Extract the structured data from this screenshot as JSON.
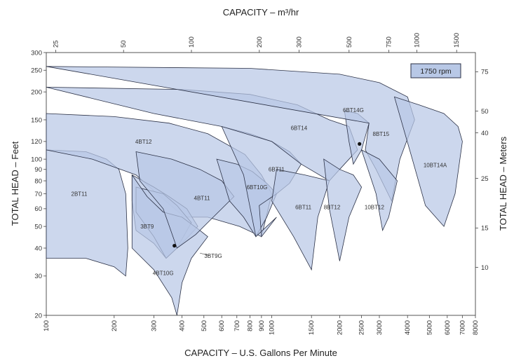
{
  "chart_data": {
    "type": "area",
    "title": "",
    "x_axis_bottom": {
      "label": "CAPACITY – U.S. Gallons Per Minute",
      "scale": "log",
      "range": [
        100,
        8000
      ],
      "ticks": [
        100,
        200,
        300,
        400,
        500,
        600,
        700,
        800,
        900,
        1000,
        1500,
        2000,
        2500,
        3000,
        4000,
        5000,
        6000,
        7000,
        8000
      ],
      "tick_labels": [
        "100",
        "200",
        "300",
        "400",
        "500",
        "600",
        "700",
        "800",
        "900",
        "1000",
        "1500",
        "2000",
        "2500",
        "3000",
        "4000",
        "5000",
        "6000",
        "7000",
        "8000"
      ]
    },
    "x_axis_top": {
      "label": "CAPACITY – m³/hr",
      "scale": "log",
      "ticks": [
        25,
        50,
        100,
        200,
        300,
        500,
        750,
        1000,
        1500
      ],
      "tick_labels": [
        "25",
        "50",
        "100",
        "200",
        "300",
        "500",
        "750",
        "1000",
        "1500"
      ]
    },
    "y_axis_left": {
      "label": "TOTAL HEAD – Feet",
      "scale": "log",
      "range": [
        20,
        300
      ],
      "ticks": [
        20,
        30,
        40,
        50,
        60,
        70,
        80,
        90,
        100,
        120,
        150,
        200,
        250,
        300
      ],
      "tick_labels": [
        "20",
        "30",
        "40",
        "50",
        "60",
        "70",
        "80",
        "90",
        "100",
        "120",
        "150",
        "200",
        "250",
        "300"
      ]
    },
    "y_axis_right": {
      "label": "TOTAL HEAD – Meters",
      "scale": "log",
      "ticks": [
        10,
        15,
        25,
        40,
        50,
        75
      ],
      "tick_labels": [
        "10",
        "15",
        "25",
        "40",
        "50",
        "75"
      ]
    },
    "speed_label": "1750 rpm",
    "regions": [
      {
        "name": "2BT11",
        "points": [
          [
            100,
            110
          ],
          [
            150,
            108
          ],
          [
            185,
            100
          ],
          [
            210,
            90
          ],
          [
            225,
            70
          ],
          [
            230,
            40
          ],
          [
            225,
            30
          ],
          [
            200,
            33
          ],
          [
            150,
            36
          ],
          [
            100,
            36
          ]
        ]
      },
      {
        "name": "4BT12",
        "points": [
          [
            100,
            160
          ],
          [
            200,
            155
          ],
          [
            350,
            145
          ],
          [
            520,
            130
          ],
          [
            760,
            105
          ],
          [
            900,
            85
          ],
          [
            1000,
            70
          ],
          [
            900,
            45
          ],
          [
            720,
            50
          ],
          [
            520,
            55
          ],
          [
            410,
            55
          ],
          [
            310,
            70
          ],
          [
            250,
            85
          ],
          [
            160,
            100
          ],
          [
            100,
            110
          ]
        ]
      },
      {
        "name": "3BT9",
        "points": [
          [
            240,
            85
          ],
          [
            300,
            75
          ],
          [
            350,
            68
          ],
          [
            420,
            60
          ],
          [
            470,
            50
          ],
          [
            400,
            42
          ],
          [
            340,
            36
          ],
          [
            300,
            42
          ],
          [
            250,
            48
          ],
          [
            240,
            65
          ]
        ]
      },
      {
        "name": "3BT9G",
        "points": [
          [
            250,
            75
          ],
          [
            330,
            70
          ],
          [
            380,
            62
          ],
          [
            440,
            52
          ],
          [
            380,
            40
          ],
          [
            340,
            36
          ],
          [
            300,
            45
          ],
          [
            250,
            58
          ]
        ]
      },
      {
        "name": "4BT10G",
        "points": [
          [
            240,
            85
          ],
          [
            280,
            68
          ],
          [
            330,
            58
          ],
          [
            400,
            55
          ],
          [
            480,
            48
          ],
          [
            520,
            45
          ],
          [
            440,
            36
          ],
          [
            400,
            28
          ],
          [
            380,
            20
          ],
          [
            360,
            24
          ],
          [
            300,
            32
          ],
          [
            240,
            40
          ]
        ]
      },
      {
        "name": "4BT11",
        "points": [
          [
            250,
            108
          ],
          [
            360,
            100
          ],
          [
            480,
            90
          ],
          [
            600,
            80
          ],
          [
            680,
            68
          ],
          [
            560,
            56
          ],
          [
            460,
            46
          ],
          [
            380,
            40
          ],
          [
            330,
            60
          ],
          [
            260,
            80
          ]
        ]
      },
      {
        "name": "6BT10G",
        "points": [
          [
            570,
            100
          ],
          [
            700,
            95
          ],
          [
            820,
            88
          ],
          [
            950,
            78
          ],
          [
            1050,
            70
          ],
          [
            950,
            55
          ],
          [
            850,
            45
          ],
          [
            750,
            55
          ],
          [
            650,
            65
          ]
        ]
      },
      {
        "name": "6BT11",
        "points": [
          [
            600,
            140
          ],
          [
            800,
            130
          ],
          [
            1000,
            120
          ],
          [
            1200,
            108
          ],
          [
            1350,
            95
          ],
          [
            1200,
            78
          ],
          [
            1050,
            70
          ],
          [
            880,
            62
          ],
          [
            900,
            45
          ],
          [
            1050,
            55
          ],
          [
            850,
            45
          ],
          [
            750,
            85
          ]
        ]
      },
      {
        "name": "6BT11b",
        "points": [
          [
            1050,
            90
          ],
          [
            1400,
            85
          ],
          [
            1800,
            80
          ],
          [
            1600,
            55
          ],
          [
            1500,
            32
          ],
          [
            1250,
            45
          ],
          [
            1000,
            65
          ]
        ]
      },
      {
        "name": "6BT14",
        "points": [
          [
            100,
            210
          ],
          [
            400,
            205
          ],
          [
            800,
            195
          ],
          [
            1300,
            175
          ],
          [
            1800,
            150
          ],
          [
            2200,
            140
          ],
          [
            2400,
            110
          ],
          [
            2000,
            90
          ],
          [
            1800,
            80
          ],
          [
            1350,
            95
          ],
          [
            1000,
            120
          ],
          [
            600,
            140
          ],
          [
            300,
            160
          ],
          [
            100,
            210
          ]
        ]
      },
      {
        "name": "8BT12",
        "points": [
          [
            1700,
            100
          ],
          [
            2000,
            90
          ],
          [
            2300,
            85
          ],
          [
            2500,
            75
          ],
          [
            2200,
            55
          ],
          [
            2000,
            35
          ],
          [
            1800,
            60
          ]
        ]
      },
      {
        "name": "6BT14G",
        "points": [
          [
            2100,
            165
          ],
          [
            2400,
            160
          ],
          [
            2700,
            145
          ],
          [
            2500,
            110
          ],
          [
            2300,
            95
          ],
          [
            2200,
            120
          ]
        ]
      },
      {
        "name": "8BT15",
        "points": [
          [
            100,
            260
          ],
          [
            800,
            255
          ],
          [
            2000,
            240
          ],
          [
            3000,
            220
          ],
          [
            4000,
            190
          ],
          [
            4300,
            150
          ],
          [
            3700,
            100
          ],
          [
            3400,
            65
          ],
          [
            2900,
            90
          ],
          [
            2600,
            110
          ],
          [
            2700,
            145
          ]
        ]
      },
      {
        "name": "10BT12",
        "points": [
          [
            2500,
            110
          ],
          [
            3000,
            100
          ],
          [
            3600,
            80
          ],
          [
            3300,
            55
          ],
          [
            3100,
            48
          ],
          [
            2900,
            70
          ]
        ]
      },
      {
        "name": "10BT14A",
        "points": [
          [
            3500,
            190
          ],
          [
            4500,
            175
          ],
          [
            5800,
            160
          ],
          [
            6700,
            140
          ],
          [
            7000,
            120
          ],
          [
            6500,
            70
          ],
          [
            5800,
            50
          ],
          [
            4800,
            62
          ],
          [
            4200,
            100
          ]
        ]
      }
    ],
    "region_labels": [
      {
        "text": "2BT11",
        "x": 140,
        "y": 70
      },
      {
        "text": "4BT12",
        "x": 270,
        "y": 120
      },
      {
        "text": "3BT9",
        "x": 280,
        "y": 50
      },
      {
        "text": "3BT9G",
        "x": 550,
        "y": 37
      },
      {
        "text": "4BT10G",
        "x": 330,
        "y": 31
      },
      {
        "text": "4BT11",
        "x": 490,
        "y": 67
      },
      {
        "text": "6BT10G",
        "x": 860,
        "y": 75
      },
      {
        "text": "6BT11",
        "x": 1050,
        "y": 90
      },
      {
        "text": "6BT11",
        "x": 1380,
        "y": 61
      },
      {
        "text": "6BT14",
        "x": 1320,
        "y": 138
      },
      {
        "text": "8BT12",
        "x": 1850,
        "y": 61
      },
      {
        "text": "6BT14G",
        "x": 2300,
        "y": 166
      },
      {
        "text": "8BT15",
        "x": 3050,
        "y": 130
      },
      {
        "text": "10BT12",
        "x": 2850,
        "y": 61
      },
      {
        "text": "10BT14A",
        "x": 5300,
        "y": 94
      }
    ],
    "points": [
      {
        "x": 370,
        "y": 41
      },
      {
        "x": 2450,
        "y": 117
      }
    ],
    "grid": false,
    "legend": "none"
  }
}
